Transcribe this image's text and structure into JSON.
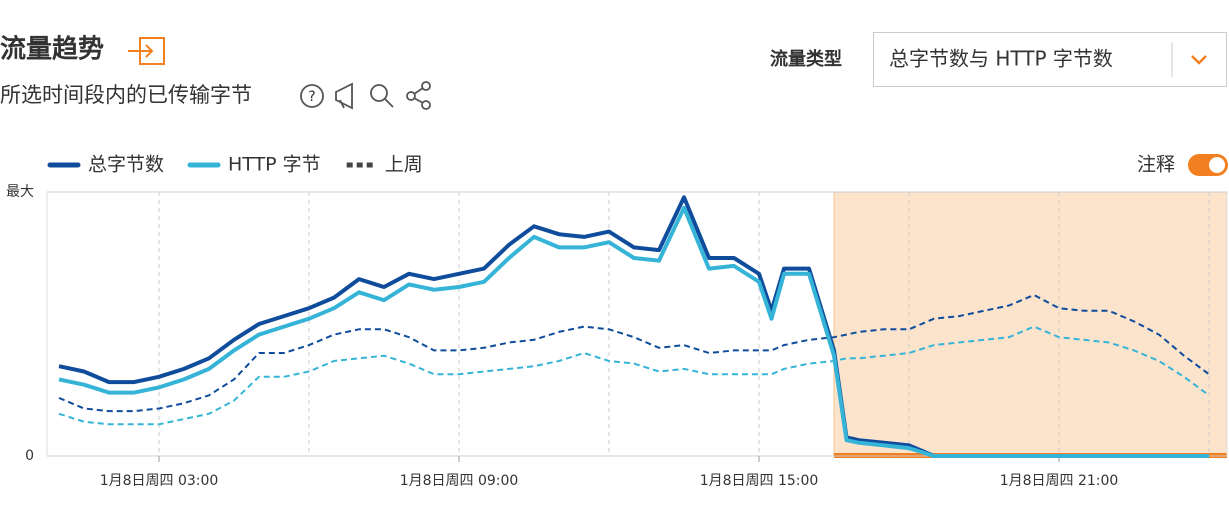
{
  "header": {
    "title": "流量趋势",
    "subtitle": "所选时间段内的已传输字节",
    "traffic_type_label": "流量类型",
    "traffic_type_value": "总字节数与 HTTP 字节数",
    "annotation_toggle_label": "注释",
    "annotation_toggle_on": true
  },
  "chart_data": {
    "type": "line",
    "x": [
      1,
      1.5,
      2,
      2.5,
      3,
      3.5,
      4,
      4.5,
      5,
      5.5,
      6,
      6.5,
      7,
      7.5,
      8,
      8.5,
      9,
      9.5,
      10,
      10.5,
      11,
      11.5,
      12,
      12.5,
      13,
      13.5,
      14,
      14.5,
      15,
      15.25,
      15.5,
      16,
      16.5,
      16.75,
      17,
      17.5,
      18,
      18.5,
      19,
      19.5,
      20,
      20.5,
      21,
      21.5,
      22,
      22.5,
      23,
      23.5,
      24
    ],
    "series": [
      {
        "name": "总字节数",
        "color": "#0f4c9c",
        "values": [
          34,
          32,
          28,
          28,
          30,
          33,
          37,
          44,
          50,
          53,
          56,
          60,
          67,
          64,
          69,
          67,
          69,
          71,
          80,
          87,
          84,
          83,
          85,
          79,
          78,
          98,
          75,
          75,
          69,
          55,
          71,
          71,
          40,
          7,
          6,
          5,
          4,
          0,
          0,
          0,
          0,
          0,
          0,
          0,
          0,
          0,
          0,
          0,
          0
        ]
      },
      {
        "name": "HTTP 字节",
        "color": "#35b4d8",
        "values": [
          29,
          27,
          24,
          24,
          26,
          29,
          33,
          40,
          46,
          49,
          52,
          56,
          62,
          59,
          65,
          63,
          64,
          66,
          75,
          83,
          79,
          79,
          81,
          75,
          74,
          94,
          71,
          72,
          66,
          52,
          69,
          69,
          38,
          6,
          5,
          4,
          3,
          0,
          0,
          0,
          0,
          0,
          0,
          0,
          0,
          0,
          0,
          0,
          0
        ]
      }
    ],
    "comparison": {
      "name": "上周",
      "series": [
        {
          "color": "#0f4c9c",
          "values": [
            22,
            18,
            17,
            17,
            18,
            20,
            23,
            29,
            39,
            39,
            42,
            46,
            48,
            48,
            45,
            40,
            40,
            41,
            43,
            44,
            47,
            49,
            48,
            45,
            41,
            42,
            39,
            40,
            40,
            40,
            42,
            44,
            45,
            46,
            47,
            48,
            48,
            52,
            53,
            55,
            57,
            61,
            56,
            55,
            55,
            51,
            46,
            38,
            31
          ]
        },
        {
          "color": "#35b4d8",
          "values": [
            16,
            13,
            12,
            12,
            12,
            14,
            16,
            21,
            30,
            30,
            32,
            36,
            37,
            38,
            35,
            31,
            31,
            32,
            33,
            34,
            36,
            39,
            36,
            35,
            32,
            33,
            31,
            31,
            31,
            31,
            33,
            35,
            36,
            37,
            37,
            38,
            39,
            42,
            43,
            44,
            45,
            49,
            45,
            44,
            43,
            40,
            36,
            30,
            23
          ]
        }
      ]
    },
    "xlim": [
      0.76,
      24.36
    ],
    "xticks": [
      {
        "value": 3,
        "label": "1月8日周四 03:00"
      },
      {
        "value": 9,
        "label": "1月8日周四 09:00"
      },
      {
        "value": 15,
        "label": "1月8日周四 15:00"
      },
      {
        "value": 21,
        "label": "1月8日周四 21:00"
      }
    ],
    "x_minor_ticks": [
      6,
      12,
      18,
      24
    ],
    "ylim": [
      0,
      100
    ],
    "yticks": [
      0,
      {
        "value": 100,
        "label": "最大"
      }
    ],
    "annotation_region": [
      16.5,
      24.36
    ]
  }
}
